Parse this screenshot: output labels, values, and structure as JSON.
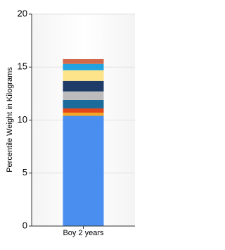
{
  "chart_data": {
    "type": "stacked_bar",
    "y_label": "Percentile Weight in Kilograms",
    "categories": [
      "Boy 2 years"
    ],
    "series": [
      {
        "color": "#4a8ef0",
        "values": [
          10.4
        ]
      },
      {
        "color": "#f5a623",
        "values": [
          0.3
        ]
      },
      {
        "color": "#e2461a",
        "values": [
          0.4
        ]
      },
      {
        "color": "#1b6b9b",
        "values": [
          0.8
        ]
      },
      {
        "color": "#bcbcbc",
        "values": [
          0.8
        ]
      },
      {
        "color": "#1f3b68",
        "values": [
          1.0
        ]
      },
      {
        "color": "#fde48a",
        "values": [
          1.0
        ]
      },
      {
        "color": "#22a3e0",
        "values": [
          0.6
        ]
      },
      {
        "color": "#d2694a",
        "values": [
          0.45
        ]
      }
    ],
    "ylim": [
      0,
      20
    ],
    "yticks": [
      0,
      5,
      10,
      15,
      20
    ],
    "grid": true
  }
}
